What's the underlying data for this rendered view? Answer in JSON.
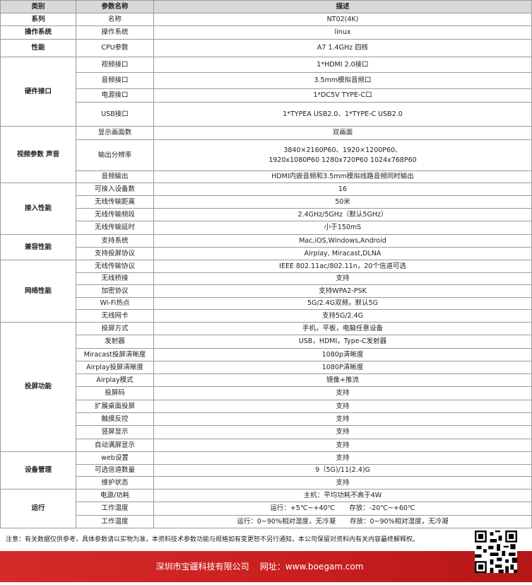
{
  "table": {
    "header": [
      "类别",
      "参数名称",
      "描述"
    ],
    "groups": [
      {
        "category": "系列",
        "rows": [
          [
            "名称",
            "NT02(4K)"
          ]
        ]
      },
      {
        "category": "操作系统",
        "rows": [
          [
            "操作系统",
            "linux"
          ]
        ]
      },
      {
        "category": "性能",
        "rows": [
          [
            "CPU参数",
            "A7 1.4GHz 四核"
          ]
        ]
      },
      {
        "category": "硬件接口",
        "rows": [
          [
            "视频接口",
            "1*HDMI 2.0接口"
          ],
          [
            "音频接口",
            "3.5mm模拟音频口"
          ],
          [
            "电源接口",
            "1*DC5V TYPE-C口"
          ],
          [
            "USB接口",
            "1*TYPEA USB2.0、1*TYPE-C USB2.0"
          ]
        ]
      },
      {
        "category": "视频参数 声音",
        "rows": [
          [
            "显示画面数",
            "双画面"
          ],
          [
            "输出分辨率",
            [
              "3840×2160P60、1920×1200P60、",
              "1920x1080P60 1280x720P60 1024x768P60"
            ]
          ],
          [
            "音频输出",
            "HDMI内嵌音频和3.5mm模拟线路音频同时输出"
          ]
        ]
      },
      {
        "category": "接入性能",
        "rows": [
          [
            "可接入设备数",
            "16"
          ],
          [
            "无线传输距离",
            "50米"
          ],
          [
            "无线传输频段",
            "2.4GHz/5GHz（默认5GHz）"
          ],
          [
            "无线传输延时",
            "小于150mS"
          ]
        ]
      },
      {
        "category": "兼容性能",
        "rows": [
          [
            "支持系统",
            "Mac,iOS,Windows,Android"
          ],
          [
            "支持投屏协议",
            "Airplay, Miracast,DLNA"
          ]
        ]
      },
      {
        "category": "网络性能",
        "rows": [
          [
            "无线传输协议",
            "IEEE 802.11ac/802.11n，20个信道可选"
          ],
          [
            "无线桥接",
            "支持"
          ],
          [
            "加密协议",
            "支持WPA2-PSK"
          ],
          [
            "Wi-Fi热点",
            "5G/2.4G双频，默认5G"
          ],
          [
            "无线网卡",
            "支持5G/2.4G"
          ]
        ]
      },
      {
        "category": "投屏功能",
        "rows": [
          [
            "投屏方式",
            "手机，平板，电脑任意设备"
          ],
          [
            "发射器",
            "USB，HDMI，Type-C发射器"
          ],
          [
            "Miracast投屏清晰度",
            "1080p清晰度"
          ],
          [
            "Airplay投屏清晰度",
            "1080P清晰度"
          ],
          [
            "Airplay模式",
            "镜像+推流"
          ],
          [
            "投屏码",
            "支持"
          ],
          [
            "扩展桌面投屏",
            "支持"
          ],
          [
            "触摸反控",
            "支持"
          ],
          [
            "竖屏显示",
            "支持"
          ],
          [
            "自动满屏显示",
            "支持"
          ]
        ]
      },
      {
        "category": "设备管理",
        "rows": [
          [
            "web设置",
            "支持"
          ],
          [
            "可选信道数量",
            "9（5G)/11(2.4)G"
          ],
          [
            "维护状态",
            "支持"
          ]
        ]
      },
      {
        "category": "运行",
        "rows": [
          [
            "电源/功耗",
            "主机：平均功耗不高于4W"
          ],
          [
            "工作温度",
            [
              "运行：+5℃~+40℃",
              "存放：-20℃~+60℃"
            ]
          ],
          [
            "工作温度",
            [
              "运行：0~90%相对湿度，无冷凝",
              "存放：0~90%相对湿度，无冷凝"
            ]
          ]
        ]
      }
    ]
  },
  "note": "注意：有关数据仅供参考，具体参数请以实物为准，本资料技术参数功能与规格如有变更恕不另行通知，本公司保留对资料内有关内容最终解释权。",
  "footer": "深圳市宝疆科技有限公司    网址：www.boegam.com"
}
